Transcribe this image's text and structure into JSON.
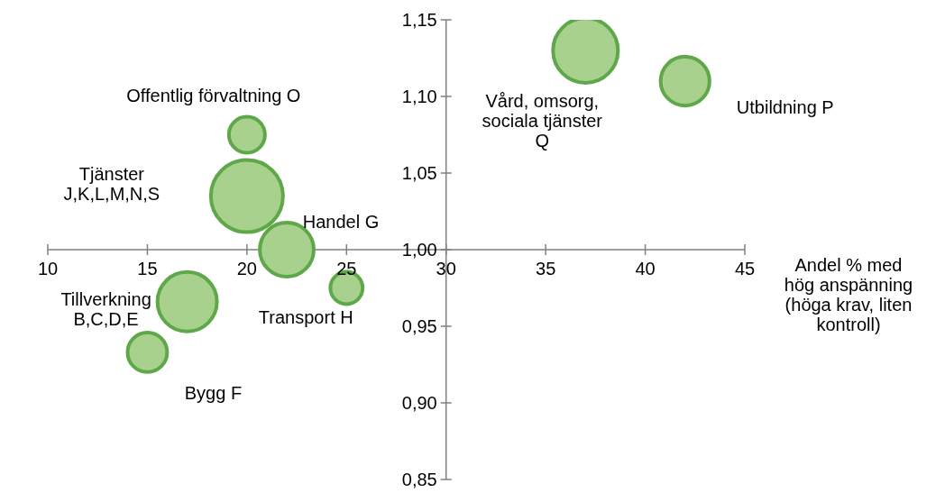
{
  "chart_data": {
    "type": "bubble",
    "xlabel": "Andel % med\nhög anspänning\n(höga krav, liten\nkontroll)",
    "marker": "circle",
    "xlim": [
      10,
      45
    ],
    "xticks": [
      10,
      15,
      20,
      25,
      30,
      35,
      40,
      45
    ],
    "ylim": [
      0.85,
      1.15
    ],
    "yticks": [
      {
        "value": 0.85,
        "label": "0,85"
      },
      {
        "value": 0.9,
        "label": "0,90"
      },
      {
        "value": 0.95,
        "label": "0,95"
      },
      {
        "value": 1.0,
        "label": "1,00"
      },
      {
        "value": 1.05,
        "label": "1,05"
      },
      {
        "value": 1.1,
        "label": "1,10"
      },
      {
        "value": 1.15,
        "label": "1,15"
      }
    ],
    "series": [
      {
        "name": "Offentlig förvaltning O",
        "color": "#a9d18e",
        "x": [
          20
        ],
        "values": [
          1.075
        ],
        "sizes": [
          0.25
        ]
      },
      {
        "name": "Tjänster\nJ,K,L,M,N,S",
        "color": "#a9d18e",
        "x": [
          20
        ],
        "values": [
          1.035
        ],
        "sizes": [
          1
        ]
      },
      {
        "name": "Vård, omsorg,\nsociala tjänster\nQ",
        "color": "#a9d18e",
        "x": [
          37
        ],
        "values": [
          1.13
        ],
        "sizes": [
          0.81
        ]
      },
      {
        "name": "Utbildning P",
        "color": "#a9d18e",
        "x": [
          42
        ],
        "values": [
          1.11
        ],
        "sizes": [
          0.46
        ]
      },
      {
        "name": "Handel G",
        "color": "#a9d18e",
        "x": [
          22
        ],
        "values": [
          1.0
        ],
        "sizes": [
          0.56
        ]
      },
      {
        "name": "Transport H",
        "color": "#a9d18e",
        "x": [
          25
        ],
        "values": [
          0.975
        ],
        "sizes": [
          0.2
        ]
      },
      {
        "name": "Tillverkning\nB,C,D,E",
        "color": "#a9d18e",
        "x": [
          17
        ],
        "values": [
          0.966
        ],
        "sizes": [
          0.68
        ]
      },
      {
        "name": "Bygg F",
        "color": "#a9d18e",
        "x": [
          15
        ],
        "values": [
          0.933
        ],
        "sizes": [
          0.3
        ]
      }
    ]
  }
}
